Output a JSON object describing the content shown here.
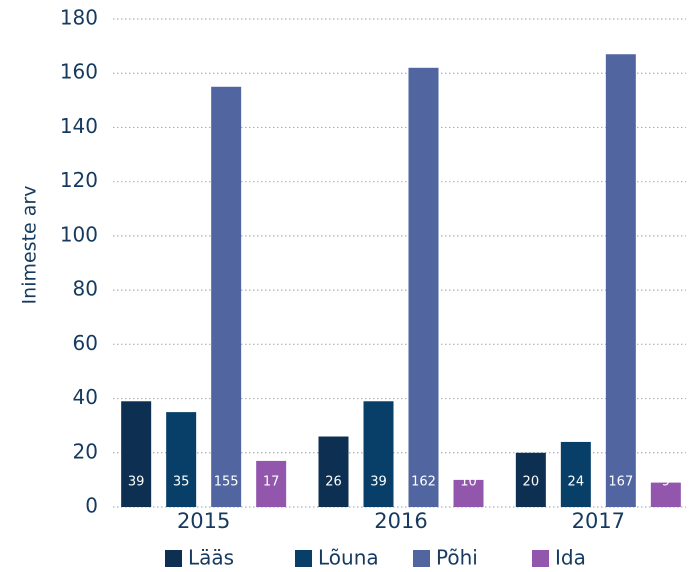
{
  "chart_data": {
    "type": "bar",
    "y_label": "Inimeste arv",
    "categories": [
      "2015",
      "2016",
      "2017"
    ],
    "series": [
      {
        "name": "Lääs",
        "color": "#0d2f52",
        "values": [
          39,
          26,
          20
        ]
      },
      {
        "name": "Lõuna",
        "color": "#073f68",
        "values": [
          35,
          39,
          24
        ]
      },
      {
        "name": "Põhi",
        "color": "#5166a1",
        "values": [
          155,
          162,
          167
        ]
      },
      {
        "name": "Ida",
        "color": "#9257ad",
        "values": [
          17,
          10,
          9
        ]
      }
    ],
    "ylim": [
      0,
      180
    ],
    "yticks": [
      0,
      20,
      40,
      60,
      80,
      100,
      120,
      140,
      160,
      180
    ],
    "grid": true,
    "legend": "bottom"
  }
}
